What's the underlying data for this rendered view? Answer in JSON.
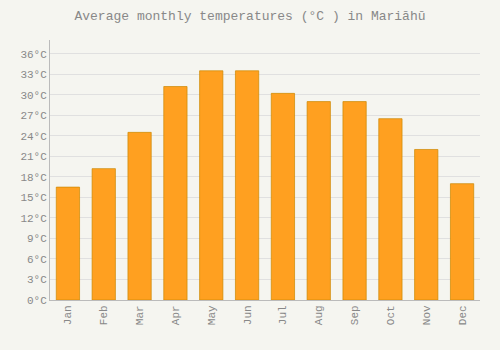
{
  "chart_data": {
    "type": "bar",
    "title": "Average monthly temperatures (°C ) in Mariāhū",
    "categories": [
      "Jan",
      "Feb",
      "Mar",
      "Apr",
      "May",
      "Jun",
      "Jul",
      "Aug",
      "Sep",
      "Oct",
      "Nov",
      "Dec"
    ],
    "values": [
      16.5,
      19.2,
      24.5,
      31.2,
      33.5,
      33.5,
      30.2,
      29.0,
      29.0,
      26.5,
      22.0,
      17.0
    ],
    "color": "#FFA020",
    "ylim": [
      0,
      38
    ],
    "yticks": [
      {
        "value": 0,
        "label": "0°C"
      },
      {
        "value": 3,
        "label": "3°C"
      },
      {
        "value": 6,
        "label": "6°C"
      },
      {
        "value": 9,
        "label": "9°C"
      },
      {
        "value": 12,
        "label": "12°C"
      },
      {
        "value": 15,
        "label": "15°C"
      },
      {
        "value": 18,
        "label": "18°C"
      },
      {
        "value": 21,
        "label": "21°C"
      },
      {
        "value": 24,
        "label": "24°C"
      },
      {
        "value": 27,
        "label": "27°C"
      },
      {
        "value": 30,
        "label": "30°C"
      },
      {
        "value": 33,
        "label": "33°C"
      },
      {
        "value": 36,
        "label": "36°C"
      }
    ],
    "grid": true
  }
}
